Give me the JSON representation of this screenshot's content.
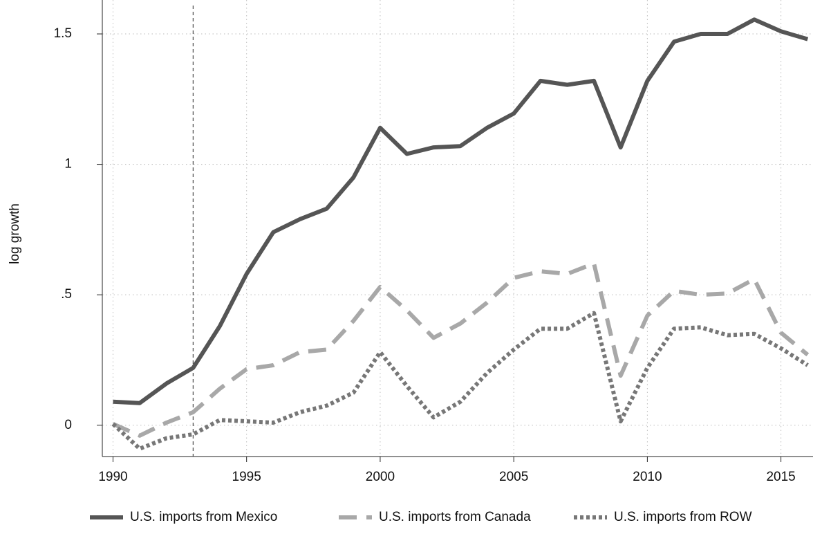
{
  "chart_data": {
    "type": "line",
    "y_label": "log growth",
    "x": [
      1990,
      1991,
      1992,
      1993,
      1994,
      1995,
      1996,
      1997,
      1998,
      1999,
      2000,
      2001,
      2002,
      2003,
      2004,
      2005,
      2006,
      2007,
      2008,
      2009,
      2010,
      2011,
      2012,
      2013,
      2014,
      2015,
      2016
    ],
    "series": [
      {
        "name": "U.S. imports from Mexico",
        "color": "#555555",
        "style": "solid",
        "values": [
          0.09,
          0.085,
          0.16,
          0.22,
          0.38,
          0.58,
          0.74,
          0.79,
          0.83,
          0.95,
          1.14,
          1.04,
          1.065,
          1.07,
          1.14,
          1.195,
          1.32,
          1.305,
          1.32,
          1.065,
          1.32,
          1.47,
          1.5,
          1.5,
          1.555,
          1.51,
          1.48
        ]
      },
      {
        "name": "U.S. imports from Canada",
        "color": "#a8a8a8",
        "style": "dashed",
        "values": [
          0.005,
          -0.04,
          0.01,
          0.05,
          0.14,
          0.215,
          0.23,
          0.28,
          0.29,
          0.4,
          0.53,
          0.44,
          0.335,
          0.39,
          0.47,
          0.565,
          0.59,
          0.58,
          0.62,
          0.19,
          0.42,
          0.515,
          0.5,
          0.505,
          0.56,
          0.355,
          0.27
        ]
      },
      {
        "name": "U.S. imports from ROW",
        "color": "#777777",
        "style": "dotted",
        "values": [
          0.005,
          -0.09,
          -0.05,
          -0.035,
          0.02,
          0.015,
          0.01,
          0.05,
          0.075,
          0.125,
          0.28,
          0.15,
          0.03,
          0.09,
          0.2,
          0.29,
          0.37,
          0.37,
          0.43,
          0.015,
          0.22,
          0.37,
          0.375,
          0.345,
          0.35,
          0.295,
          0.23
        ]
      }
    ],
    "xlim": [
      1989.6,
      2016.2
    ],
    "xticks": [
      1990,
      1995,
      2000,
      2005,
      2010,
      2015
    ],
    "ylim": [
      -0.12,
      1.63
    ],
    "yticks": [
      0,
      {
        "value": 0.5,
        "label": ".5"
      },
      1,
      1.5
    ],
    "vline": 1993,
    "grid": true,
    "legend": "bottom"
  }
}
